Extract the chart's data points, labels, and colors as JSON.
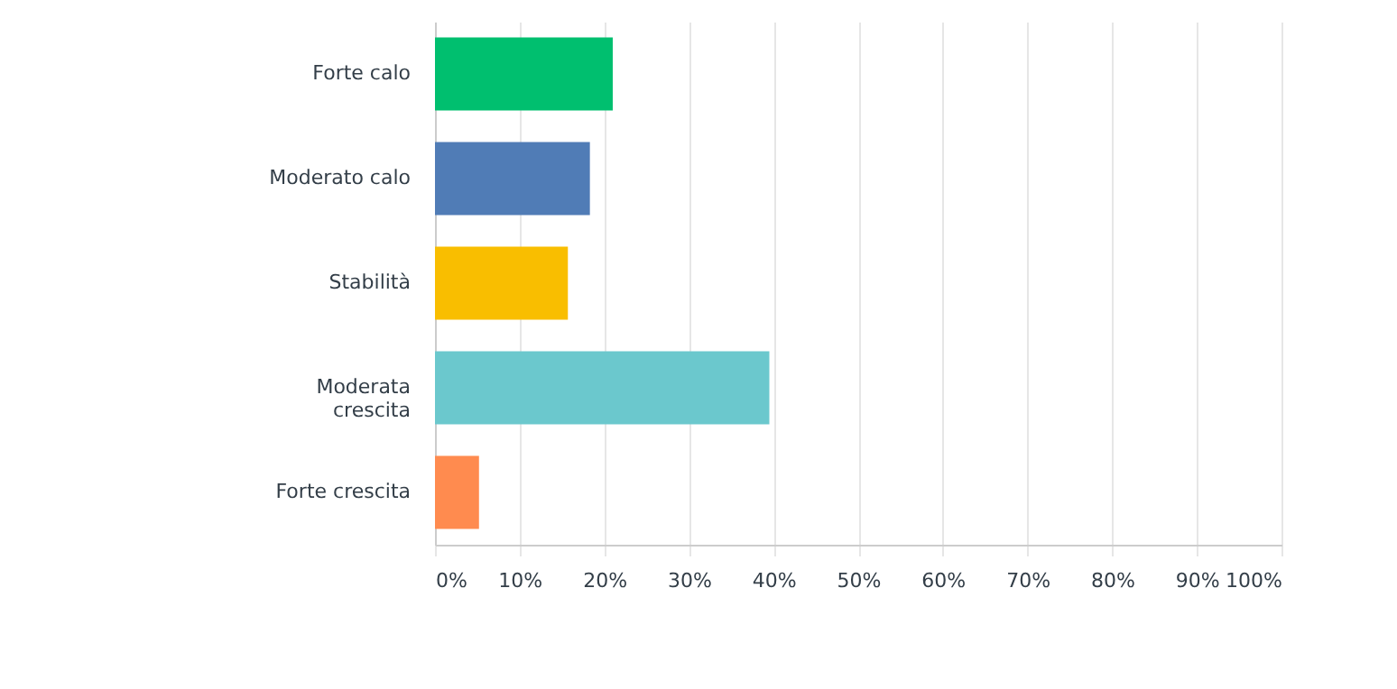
{
  "chart_data": {
    "type": "bar",
    "orientation": "horizontal",
    "categories": [
      "Forte calo",
      "Moderato calo",
      "Stabilità",
      "Moderata crescita",
      "Forte crescita"
    ],
    "values": [
      21.0,
      18.3,
      15.7,
      39.5,
      5.2
    ],
    "colors": [
      "#00bf6f",
      "#507cb6",
      "#f9be00",
      "#6bc8cd",
      "#ff8b4f"
    ],
    "xlim": [
      0,
      100
    ],
    "xticks": [
      {
        "value": 0,
        "label": "0%"
      },
      {
        "value": 10,
        "label": "10%"
      },
      {
        "value": 20,
        "label": "20%"
      },
      {
        "value": 30,
        "label": "30%"
      },
      {
        "value": 40,
        "label": "40%"
      },
      {
        "value": 50,
        "label": "50%"
      },
      {
        "value": 60,
        "label": "60%"
      },
      {
        "value": 70,
        "label": "70%"
      },
      {
        "value": 80,
        "label": "80%"
      },
      {
        "value": 90,
        "label": "90%"
      },
      {
        "value": 100,
        "label": "100%"
      }
    ],
    "grid": "x"
  }
}
